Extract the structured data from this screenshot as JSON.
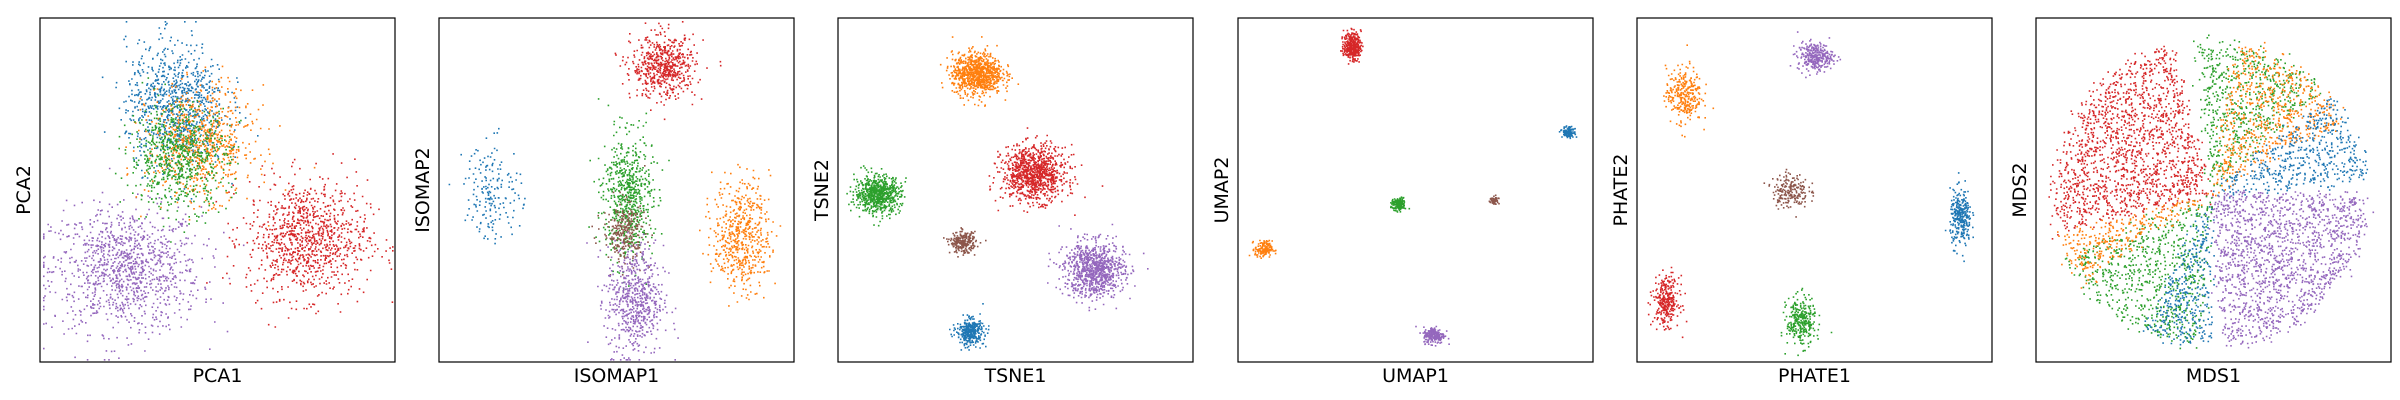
{
  "colors": {
    "blue": "#1f77b4",
    "orange": "#ff7f0e",
    "green": "#2ca02c",
    "red": "#d62728",
    "purple": "#9467bd",
    "brown": "#8c564b"
  },
  "chart_data": [
    {
      "type": "scatter",
      "xlabel": "PCA1",
      "ylabel": "PCA2",
      "grid": false,
      "ticks": false,
      "clusters": [
        {
          "color": "purple",
          "x": 0.24,
          "y": 0.27,
          "sx": 0.105,
          "sy": 0.09,
          "n": 1100
        },
        {
          "color": "red",
          "x": 0.75,
          "y": 0.36,
          "sx": 0.085,
          "sy": 0.085,
          "n": 1000
        },
        {
          "color": "blue",
          "x": 0.38,
          "y": 0.75,
          "sx": 0.07,
          "sy": 0.09,
          "n": 850
        },
        {
          "color": "orange",
          "x": 0.45,
          "y": 0.64,
          "sx": 0.075,
          "sy": 0.08,
          "n": 700
        },
        {
          "color": "green",
          "x": 0.39,
          "y": 0.6,
          "sx": 0.07,
          "sy": 0.075,
          "n": 700
        }
      ]
    },
    {
      "type": "scatter",
      "xlabel": "ISOMAP1",
      "ylabel": "ISOMAP2",
      "grid": false,
      "ticks": false,
      "clusters": [
        {
          "color": "red",
          "x": 0.63,
          "y": 0.86,
          "sx": 0.045,
          "sy": 0.045,
          "n": 600
        },
        {
          "color": "blue",
          "x": 0.15,
          "y": 0.5,
          "sx": 0.04,
          "sy": 0.07,
          "n": 180
        },
        {
          "color": "green",
          "x": 0.53,
          "y": 0.48,
          "sx": 0.035,
          "sy": 0.09,
          "n": 650
        },
        {
          "color": "brown",
          "x": 0.52,
          "y": 0.38,
          "sx": 0.03,
          "sy": 0.045,
          "n": 250
        },
        {
          "color": "orange",
          "x": 0.85,
          "y": 0.37,
          "sx": 0.04,
          "sy": 0.08,
          "n": 550
        },
        {
          "color": "purple",
          "x": 0.55,
          "y": 0.18,
          "sx": 0.04,
          "sy": 0.08,
          "n": 600
        }
      ]
    },
    {
      "type": "scatter",
      "xlabel": "TSNE1",
      "ylabel": "TSNE2",
      "grid": false,
      "ticks": false,
      "clusters": [
        {
          "color": "orange",
          "x": 0.39,
          "y": 0.84,
          "sx": 0.035,
          "sy": 0.03,
          "n": 900
        },
        {
          "color": "red",
          "x": 0.55,
          "y": 0.55,
          "sx": 0.045,
          "sy": 0.04,
          "n": 1000
        },
        {
          "color": "green",
          "x": 0.11,
          "y": 0.49,
          "sx": 0.032,
          "sy": 0.027,
          "n": 700
        },
        {
          "color": "brown",
          "x": 0.35,
          "y": 0.35,
          "sx": 0.018,
          "sy": 0.015,
          "n": 250
        },
        {
          "color": "purple",
          "x": 0.72,
          "y": 0.27,
          "sx": 0.042,
          "sy": 0.04,
          "n": 900
        },
        {
          "color": "blue",
          "x": 0.37,
          "y": 0.09,
          "sx": 0.019,
          "sy": 0.019,
          "n": 350
        }
      ]
    },
    {
      "type": "scatter",
      "xlabel": "UMAP1",
      "ylabel": "UMAP2",
      "grid": false,
      "ticks": false,
      "clusters": [
        {
          "color": "red",
          "x": 0.32,
          "y": 0.92,
          "sx": 0.012,
          "sy": 0.02,
          "n": 350
        },
        {
          "color": "blue",
          "x": 0.93,
          "y": 0.67,
          "sx": 0.009,
          "sy": 0.008,
          "n": 120
        },
        {
          "color": "green",
          "x": 0.45,
          "y": 0.46,
          "sx": 0.01,
          "sy": 0.009,
          "n": 150
        },
        {
          "color": "brown",
          "x": 0.72,
          "y": 0.47,
          "sx": 0.006,
          "sy": 0.007,
          "n": 60
        },
        {
          "color": "orange",
          "x": 0.07,
          "y": 0.33,
          "sx": 0.012,
          "sy": 0.012,
          "n": 150
        },
        {
          "color": "purple",
          "x": 0.55,
          "y": 0.08,
          "sx": 0.015,
          "sy": 0.012,
          "n": 220
        }
      ]
    },
    {
      "type": "scatter",
      "xlabel": "PHATE1",
      "ylabel": "PHATE2",
      "grid": false,
      "ticks": false,
      "clusters": [
        {
          "color": "purple",
          "x": 0.5,
          "y": 0.89,
          "sx": 0.025,
          "sy": 0.02,
          "n": 300
        },
        {
          "color": "orange",
          "x": 0.13,
          "y": 0.78,
          "sx": 0.025,
          "sy": 0.04,
          "n": 300
        },
        {
          "color": "brown",
          "x": 0.43,
          "y": 0.5,
          "sx": 0.025,
          "sy": 0.025,
          "n": 200
        },
        {
          "color": "blue",
          "x": 0.91,
          "y": 0.42,
          "sx": 0.015,
          "sy": 0.04,
          "n": 300
        },
        {
          "color": "red",
          "x": 0.08,
          "y": 0.18,
          "sx": 0.018,
          "sy": 0.035,
          "n": 300
        },
        {
          "color": "green",
          "x": 0.46,
          "y": 0.12,
          "sx": 0.02,
          "sy": 0.035,
          "n": 300
        }
      ]
    },
    {
      "type": "scatter",
      "xlabel": "MDS1",
      "ylabel": "MDS2",
      "grid": false,
      "ticks": false,
      "layout": "pie",
      "center": [
        0.49,
        0.49
      ],
      "radius": 0.44,
      "clusters": [
        {
          "color": "red",
          "theta_start": 105,
          "theta_end": 195,
          "n": 1600
        },
        {
          "color": "green",
          "theta_start": 45,
          "theta_end": 95,
          "n": 650
        },
        {
          "color": "orange",
          "theta_start": 30,
          "theta_end": 80,
          "n": 650
        },
        {
          "color": "blue",
          "theta_start": 5,
          "theta_end": 40,
          "n": 500
        },
        {
          "color": "purple",
          "theta_start": 275,
          "theta_end": 360,
          "n": 1500
        },
        {
          "color": "green",
          "theta_start": 205,
          "theta_end": 265,
          "n": 750
        },
        {
          "color": "orange",
          "theta_start": 195,
          "theta_end": 215,
          "n": 300
        },
        {
          "color": "blue",
          "theta_start": 245,
          "theta_end": 270,
          "n": 350
        }
      ]
    }
  ]
}
